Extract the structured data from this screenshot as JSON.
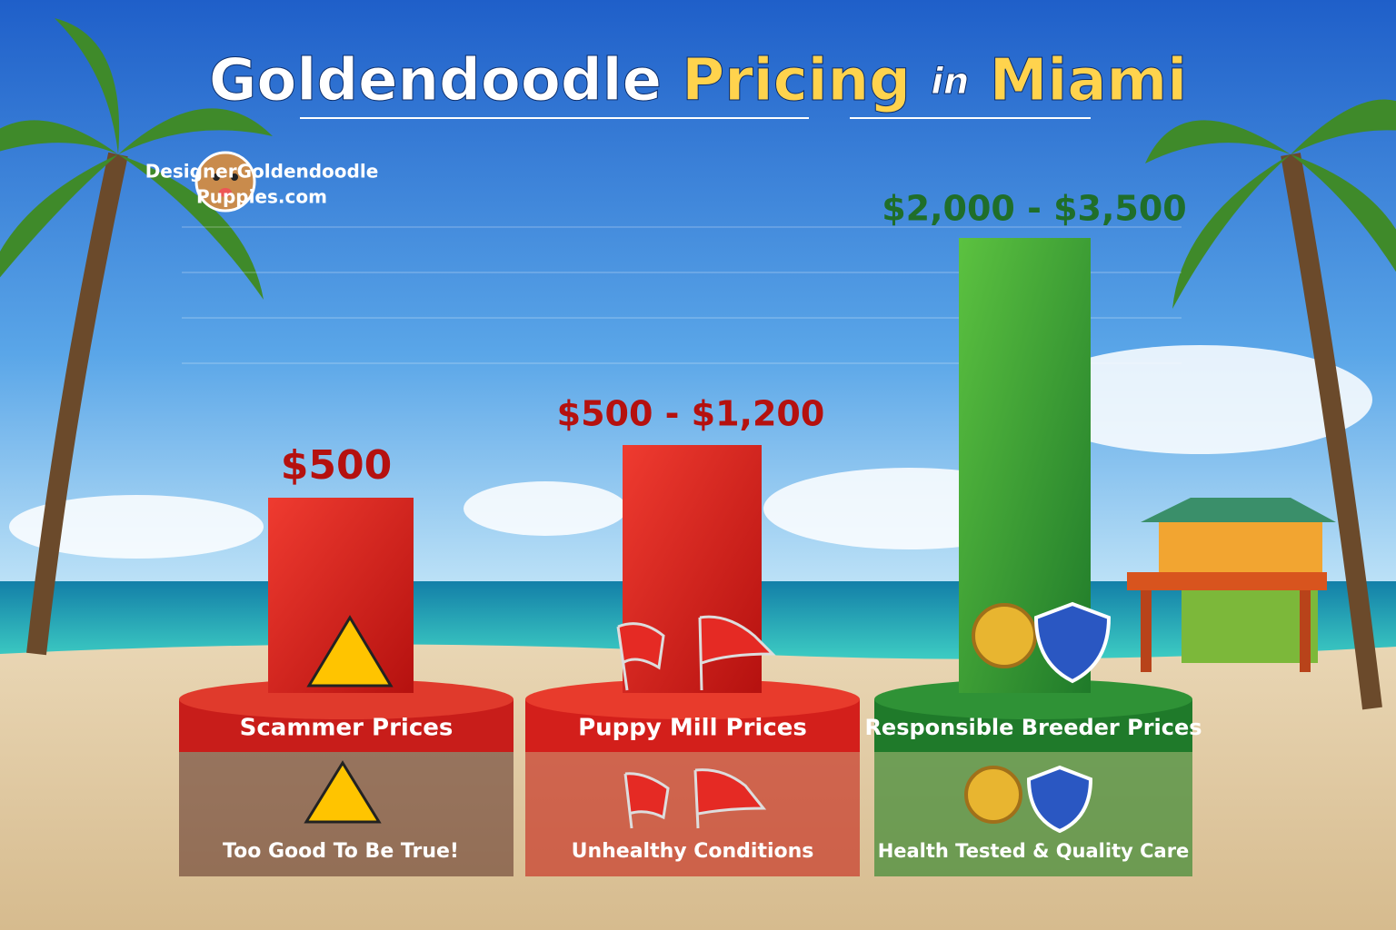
{
  "title": {
    "part1": "Goldendoodle",
    "part2": "Pricing",
    "part3": "in",
    "part4": "Miami"
  },
  "logo": {
    "line1": "DesignerGoldendoodle",
    "line2": "Puppies.com"
  },
  "tiers": [
    {
      "price": "$500",
      "name": "Scammer Prices",
      "note": "Too Good To Be True!"
    },
    {
      "price": "$500 - $1,200",
      "name": "Puppy Mill Prices",
      "note": "Unhealthy Conditions"
    },
    {
      "price": "$2,000 - $3,500",
      "name": "Responsible Breeder Prices",
      "note": "Health Tested & Quality Care"
    }
  ]
}
